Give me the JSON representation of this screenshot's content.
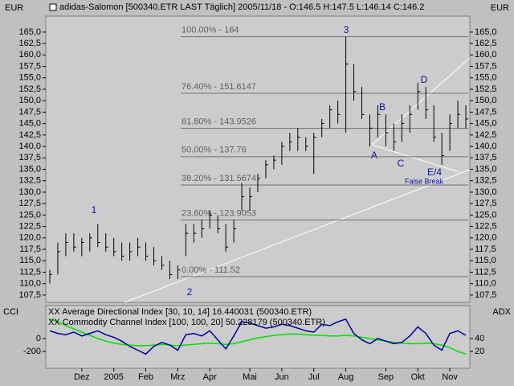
{
  "chart_data": [
    {
      "type": "ohlc",
      "title": "adidas-Salomon [500340.ETR LAST Täglich] 2005/11/18 - O:146.5 H:147.5 L:146.14 C:146.2",
      "y_label": "EUR",
      "categories": [
        null,
        null,
        null,
        null,
        "Dez",
        null,
        null,
        null,
        "2005",
        null,
        null,
        null,
        "Feb",
        null,
        null,
        null,
        "Mrz",
        null,
        null,
        null,
        "Apr",
        null,
        null,
        null,
        null,
        "Mai",
        null,
        null,
        null,
        "Jun",
        null,
        null,
        null,
        "Jul",
        null,
        null,
        null,
        "Aug",
        null,
        null,
        null,
        null,
        "Sep",
        null,
        null,
        null,
        "Okt",
        null,
        null,
        null,
        "Nov",
        null,
        null
      ],
      "high": [
        113,
        119,
        121,
        121,
        120,
        121,
        123,
        121,
        120,
        119,
        119,
        120,
        119,
        118,
        116,
        115,
        114,
        123,
        123,
        124,
        126,
        125,
        123,
        124,
        132,
        131,
        134,
        137,
        138,
        141,
        143,
        144,
        142,
        143,
        146,
        149,
        150,
        164,
        158,
        153,
        147,
        149,
        147,
        145,
        147,
        149,
        154,
        153,
        149,
        143,
        147,
        150,
        149
      ],
      "low": [
        110,
        112,
        116,
        117,
        116,
        117,
        118,
        117,
        116,
        115,
        115,
        116,
        115,
        114,
        113,
        111,
        111,
        116,
        119,
        120,
        122,
        121,
        117,
        119,
        126,
        126,
        130,
        133,
        135,
        136,
        139,
        139,
        139,
        134,
        142,
        144,
        145,
        143,
        150,
        146,
        140,
        142,
        140,
        139,
        141,
        143,
        148,
        146,
        141,
        136,
        139,
        144,
        144
      ],
      "close": [
        112,
        117,
        119,
        118,
        119,
        120,
        119,
        118,
        117,
        116,
        117,
        118,
        116,
        115,
        114,
        112,
        113,
        121,
        121,
        122,
        125,
        122,
        118,
        122,
        129,
        129,
        133,
        136,
        137,
        140,
        141,
        142,
        140,
        142,
        145,
        148,
        147,
        158,
        152,
        147,
        144,
        147,
        143,
        141,
        145,
        147,
        152,
        148,
        142,
        138,
        145,
        147,
        146
      ],
      "color": "#000000",
      "ylim": [
        105.9,
        168.5
      ],
      "yticks": [
        {
          "value": 107.5,
          "label": "107,5"
        },
        {
          "value": 110,
          "label": "110,0"
        },
        {
          "value": 112.5,
          "label": "112,5"
        },
        {
          "value": 115,
          "label": "115,0"
        },
        {
          "value": 117.5,
          "label": "117,5"
        },
        {
          "value": 120,
          "label": "120,0"
        },
        {
          "value": 122.5,
          "label": "122,5"
        },
        {
          "value": 125,
          "label": "125,0"
        },
        {
          "value": 127.5,
          "label": "127,5"
        },
        {
          "value": 130,
          "label": "130,0"
        },
        {
          "value": 132.5,
          "label": "132,5"
        },
        {
          "value": 135,
          "label": "135,0"
        },
        {
          "value": 137.5,
          "label": "137,5"
        },
        {
          "value": 140,
          "label": "140,0"
        },
        {
          "value": 142.5,
          "label": "142,5"
        },
        {
          "value": 145,
          "label": "145,0"
        },
        {
          "value": 147.5,
          "label": "147,5"
        },
        {
          "value": 150,
          "label": "150,0"
        },
        {
          "value": 152.5,
          "label": "152,5"
        },
        {
          "value": 155,
          "label": "155,0"
        },
        {
          "value": 157.5,
          "label": "157,5"
        },
        {
          "value": 160,
          "label": "160,0"
        },
        {
          "value": 162.5,
          "label": "162,5"
        },
        {
          "value": 165,
          "label": "165,0"
        }
      ],
      "fib_levels": [
        {
          "value": 164,
          "label": "100.00% - 164"
        },
        {
          "value": 151.6147,
          "label": "76.40% - 151.6147"
        },
        {
          "value": 143.9526,
          "label": "61.80% - 143.9526"
        },
        {
          "value": 137.76,
          "label": "50.00% - 137.76"
        },
        {
          "value": 131.5674,
          "label": "38.20% - 131.5674"
        },
        {
          "value": 123.9053,
          "label": "23.60% - 123.9053"
        },
        {
          "value": 111.52,
          "label": "0.00% - 111.52"
        }
      ],
      "annotations": [
        "1",
        "2",
        "3",
        "A",
        "B",
        "C",
        "D",
        "E/4",
        "False Break"
      ]
    },
    {
      "type": "line",
      "y_label": "CCI",
      "y2_label": "ADX",
      "ylim": [
        -460,
        510
      ],
      "yticks": [
        -200,
        0
      ],
      "y2lim": [
        -6,
        91
      ],
      "y2ticks": [
        20,
        40
      ],
      "series": [
        {
          "name": "XX Average Directional Index [30, 10, 14] 16.440031 (500340.ETR)",
          "color": "#00e000",
          "axis": "y2",
          "values": [
            70,
            66,
            60,
            55,
            50,
            45,
            40,
            36,
            33,
            31,
            30,
            29,
            29,
            30,
            31,
            30,
            29,
            30,
            31,
            32,
            33,
            32,
            31,
            32,
            35,
            38,
            41,
            43,
            45,
            46,
            47,
            47,
            46,
            45,
            45,
            44,
            44,
            45,
            44,
            42,
            40,
            38,
            36,
            34,
            33,
            32,
            32,
            33,
            32,
            30,
            26,
            20,
            16
          ]
        },
        {
          "name": "XX Commodity Channel Index [100, 100, 20] 50.228179 (500340.ETR)",
          "color": "#0000a0",
          "values": [
            120,
            80,
            60,
            100,
            40,
            80,
            120,
            60,
            20,
            -40,
            -120,
            -180,
            -240,
            -120,
            -60,
            -100,
            -180,
            60,
            80,
            40,
            120,
            -20,
            -160,
            40,
            260,
            240,
            200,
            160,
            180,
            220,
            200,
            160,
            120,
            100,
            220,
            200,
            260,
            300,
            80,
            -20,
            -80,
            0,
            -40,
            -80,
            -60,
            40,
            180,
            80,
            -100,
            -180,
            80,
            120,
            50
          ]
        }
      ]
    }
  ]
}
